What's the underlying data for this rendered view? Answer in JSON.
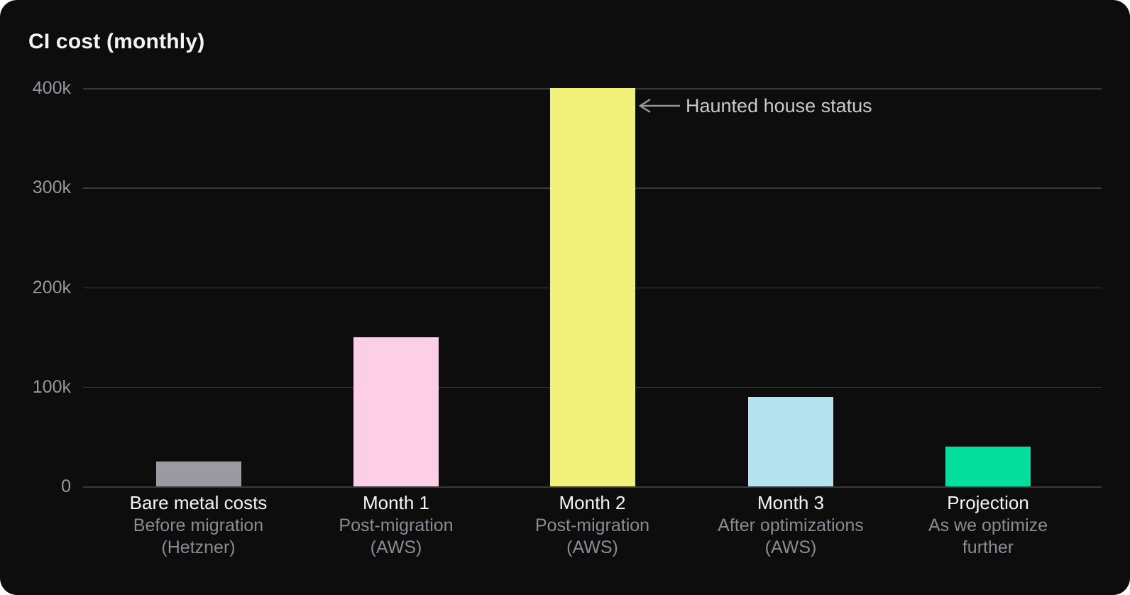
{
  "page": {
    "background_color": "#0d0d0d",
    "title_color": "#f4f4f5",
    "tick_color": "#97979d",
    "sublabel_color": "#8b8b91",
    "gridline_color": "#3a3a3d",
    "annotation_color": "#c9c9cd",
    "arrow_color": "#96969b"
  },
  "chart_data": {
    "type": "bar",
    "title": "CI cost (monthly)",
    "xlabel": "",
    "ylabel": "",
    "ylim": [
      0,
      400000
    ],
    "grid": "horizontal",
    "legend": "none",
    "yticks": [
      {
        "label": "400k",
        "value": 400000
      },
      {
        "label": "300k",
        "value": 300000
      },
      {
        "label": "200k",
        "value": 200000
      },
      {
        "label": "100k",
        "value": 100000
      },
      {
        "label": "0",
        "value": 0
      }
    ],
    "categories": [
      {
        "label": "Bare metal costs",
        "sublines": [
          "Before migration",
          "(Hetzner)"
        ]
      },
      {
        "label": "Month 1",
        "sublines": [
          "Post-migration",
          "(AWS)"
        ]
      },
      {
        "label": "Month 2",
        "sublines": [
          "Post-migration",
          "(AWS)"
        ]
      },
      {
        "label": "Month 3",
        "sublines": [
          "After optimizations",
          "(AWS)"
        ]
      },
      {
        "label": "Projection",
        "sublines": [
          "As we optimize",
          "further"
        ]
      }
    ],
    "values": [
      25000,
      150000,
      400000,
      90000,
      40000
    ],
    "bar_colors": [
      "#9a9aa0",
      "#fccfe6",
      "#f0f178",
      "#b4e3ee",
      "#02df9d"
    ],
    "annotation": {
      "text": "Haunted house status",
      "points_to": "Month 2",
      "arrow_direction": "left"
    }
  }
}
